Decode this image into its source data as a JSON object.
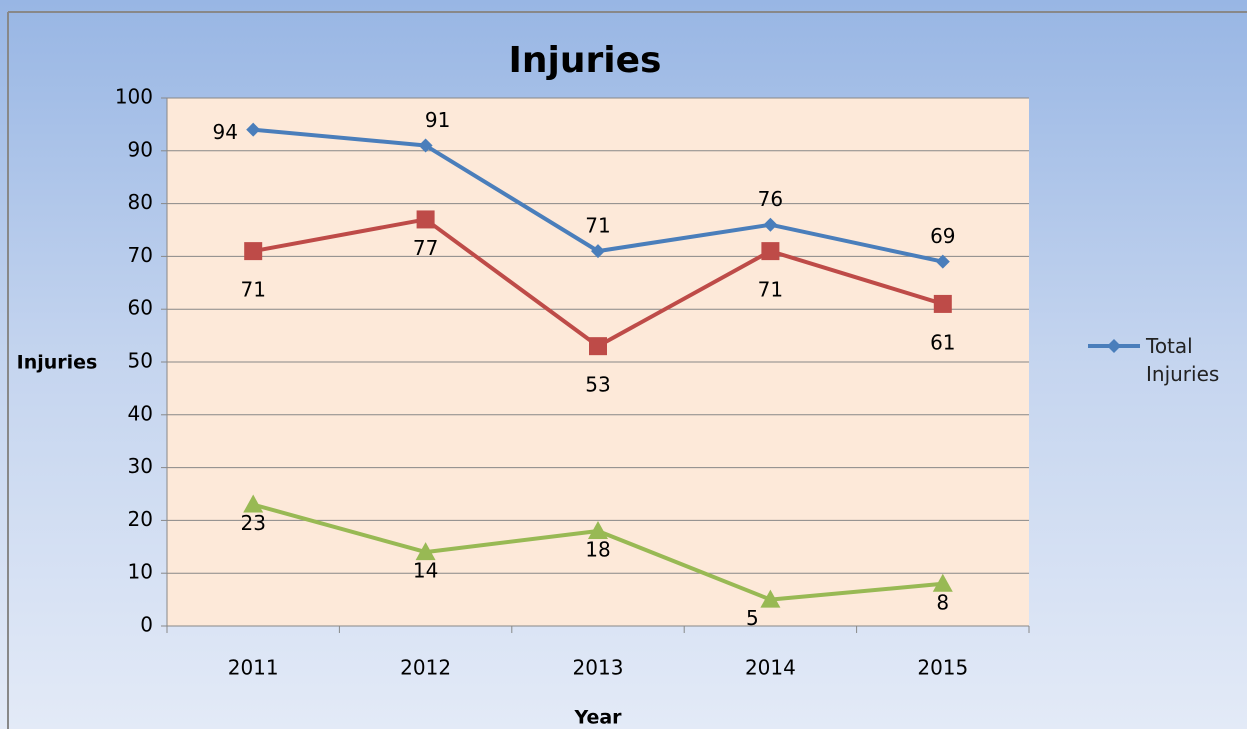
{
  "chart_data": {
    "type": "line",
    "title": "Injuries",
    "y_label": "Injuries",
    "x_label": "Year",
    "categories": [
      "2011",
      "2012",
      "2013",
      "2014",
      "2015"
    ],
    "series": [
      {
        "name": "Total Injuries",
        "color": "#4a7ebb",
        "marker": "diamond",
        "values": [
          94,
          91,
          71,
          76,
          69
        ]
      },
      {
        "color": "#be4b48",
        "marker": "square",
        "values": [
          71,
          77,
          53,
          71,
          61
        ]
      },
      {
        "color": "#98b954",
        "marker": "triangle",
        "values": [
          23,
          14,
          18,
          5,
          8
        ]
      }
    ],
    "ylim": [
      0,
      100
    ],
    "yticks": [
      0,
      10,
      20,
      30,
      40,
      50,
      60,
      70,
      80,
      90,
      100
    ],
    "grid": true,
    "legend": "right"
  }
}
